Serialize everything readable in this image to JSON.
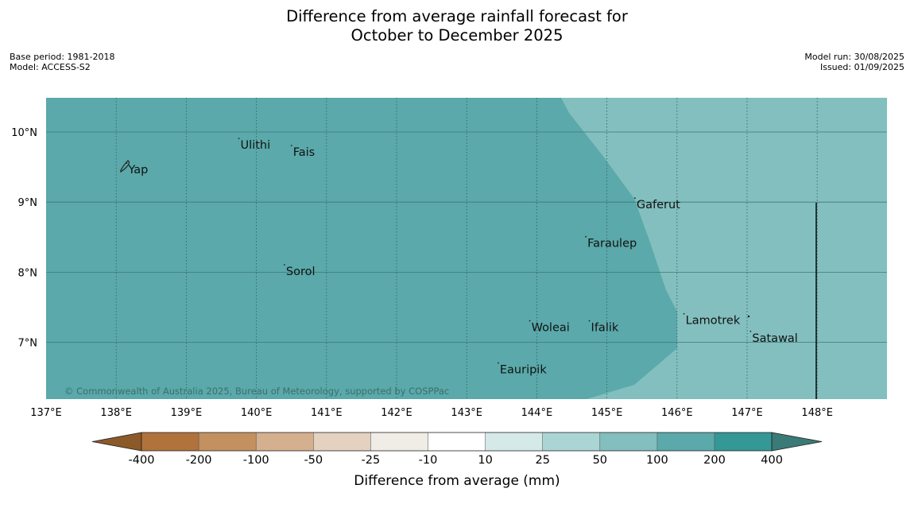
{
  "title_line1": "Difference from average rainfall forecast for",
  "title_line2": "October to December 2025",
  "meta_left": {
    "base_period": "Base period: 1981-2018",
    "model": "Model: ACCESS-S2"
  },
  "meta_right": {
    "model_run": "Model run: 30/08/2025",
    "issued": "Issued: 01/09/2025"
  },
  "map": {
    "lat_labels": [
      "10°N",
      "9°N",
      "8°N",
      "7°N"
    ],
    "lon_labels": [
      "137°E",
      "138°E",
      "139°E",
      "140°E",
      "141°E",
      "142°E",
      "143°E",
      "144°E",
      "145°E",
      "146°E",
      "147°E",
      "148°E"
    ],
    "places": [
      {
        "name": "Ulithi",
        "lon": 139.75,
        "lat": 9.85
      },
      {
        "name": "Yap",
        "lon": 138.15,
        "lat": 9.5
      },
      {
        "name": "Fais",
        "lon": 140.5,
        "lat": 9.75
      },
      {
        "name": "Gaferut",
        "lon": 145.4,
        "lat": 9.0
      },
      {
        "name": "Faraulep",
        "lon": 144.7,
        "lat": 8.45
      },
      {
        "name": "Sorol",
        "lon": 140.4,
        "lat": 8.05
      },
      {
        "name": "Lamotrek",
        "lon": 146.1,
        "lat": 7.35
      },
      {
        "name": "Woleai",
        "lon": 143.9,
        "lat": 7.25
      },
      {
        "name": "Ifalik",
        "lon": 144.75,
        "lat": 7.25
      },
      {
        "name": "Satawal",
        "lon": 147.05,
        "lat": 7.1
      },
      {
        "name": "Eauripik",
        "lon": 143.45,
        "lat": 6.65
      }
    ],
    "copyright": "© Commonwealth of Australia 2025, Bureau of Meteorology, supported by COSPPac",
    "region_colors": {
      "main": "#5ba9aa",
      "east": "#82bfbe"
    }
  },
  "colorbar": {
    "title": "Difference from average (mm)",
    "tick_labels": [
      "-400",
      "-200",
      "-100",
      "-50",
      "-25",
      "-10",
      "10",
      "25",
      "50",
      "100",
      "200",
      "400"
    ],
    "colors": [
      "#8c5a28",
      "#b0733c",
      "#c3915f",
      "#d4b08f",
      "#e4d1bf",
      "#f0ede7",
      "#ffffff",
      "#d5e9e9",
      "#abd5d5",
      "#82bfbe",
      "#5ba9aa",
      "#349896",
      "#3a7a77"
    ]
  }
}
